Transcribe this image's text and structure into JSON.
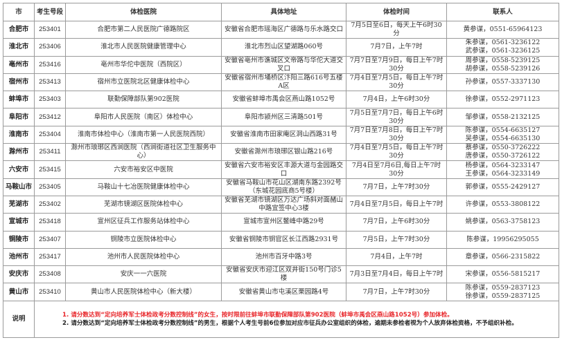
{
  "headers": [
    "市",
    "考生号段",
    "体检医院",
    "具体地址",
    "体检时间",
    "联系人"
  ],
  "rows": [
    {
      "city": "合肥市",
      "code": "253401",
      "hospital": "合肥市第二人民医院广德路院区",
      "address": "安徽省合肥市瑶海区广德路与乐水路交口",
      "time": "7月5日至6日，每天上午6时30分",
      "contacts": [
        "黄参谋，0551-65964123"
      ]
    },
    {
      "city": "淮北市",
      "code": "253406",
      "hospital": "淮北市人民医院健康管理中心",
      "address": "淮北市烈山区望湖路060号",
      "time": "7月7日，上午7时",
      "contacts": [
        "朱参谋，0561-3236122",
        "武参谋，0561-3236125"
      ]
    },
    {
      "city": "亳州市",
      "code": "253416",
      "hospital": "亳州市华佗中医院（西院区）",
      "address": "安徽省亳州市谯城区文帝路与华佗大道交叉口",
      "time": "7月7日至7月9日，每日上午7时30分",
      "contacts": [
        "周参谋，0558-5239125",
        "胡参谋，0558-5239126"
      ]
    },
    {
      "city": "宿州市",
      "code": "253413",
      "hospital": "宿州市立医院北区健康体检中心",
      "address": "安徽省宿州市埇桥区汴阳三路616号五楼A区",
      "time": "7月4日至7月5日，每日上午7时30分",
      "contacts": [
        "孙参谋，0557-3337130"
      ]
    },
    {
      "city": "蚌埠市",
      "code": "253403",
      "hospital": "联勤保障部队第902医院",
      "address": "安徽省蚌埠市禹会区燕山路1052号",
      "time": "7月4日，上午6时30分",
      "contacts": [
        "徐参谋，0552-2971123"
      ]
    },
    {
      "city": "阜阳市",
      "code": "253412",
      "hospital": "阜阳市人民医院（南区）体检中心",
      "address": "阜阳市颍州区三清路501号",
      "time": "7月5日至7月7日，每日上午6时30分",
      "contacts": [
        "邹参谋，0558-2132125"
      ]
    },
    {
      "city": "淮南市",
      "code": "253404",
      "hospital": "淮南市体检中心（淮南市第一人民医院西院）",
      "address": "安徽省淮南市田家庵区洞山西路31号",
      "time": "7月7日至7月8日，每日上午7时30分",
      "contacts": [
        "陈参谋，0554-6635127",
        "吴参谋，0554-6635130"
      ]
    },
    {
      "city": "滁州市",
      "code": "253411",
      "hospital": "滁州市琅琊区西涧医院（西涧街道社区卫生服务中心）",
      "address": "安徽省滁州市琅琊区银山路216号",
      "time": "7月4日至7月5日，每日上午7时30分",
      "contacts": [
        "蔡参谋，0550-3726222",
        "唐参谋，0550-3726122"
      ]
    },
    {
      "city": "六安市",
      "code": "253415",
      "hospital": "六安市裕安区中医院",
      "address": "安徽省六安市裕安区丰源大道与金园路交口",
      "time": "7月4日至7月6日,每日上午7时30分",
      "contacts": [
        "杨参谋，0564-3233147",
        "王参谋，0564-3233149"
      ]
    },
    {
      "city": "马鞍山市",
      "code": "253405",
      "hospital": "马鞍山十七冶医院健康体检中心",
      "address": "安徽省马鞍山市花山区湖南东路2392号（东城花园底商5号楼）",
      "time": "7月7日，上午7时30分",
      "contacts": [
        "郭参谋，0555-2429127"
      ]
    },
    {
      "city": "芜湖市",
      "code": "253402",
      "hospital": "芜湖市镜湖区医院体检中心",
      "address": "安徽省芜湖市镜湖区万达广场斜对面赭山中路宜签中心3楼",
      "time": "7月4日至7月5日，每日上午7时",
      "contacts": [
        "许参谋，0553-3808122"
      ]
    },
    {
      "city": "宣城市",
      "code": "253418",
      "hospital": "宣州区征兵工作服务站体检中心",
      "address": "宣城市宣州区鳌峰中路29号",
      "time": "7月7日，上午6时30分",
      "contacts": [
        "姚参谋，0563-3758123"
      ]
    },
    {
      "city": "铜陵市",
      "code": "253407",
      "hospital": "铜陵市立医院体检中心",
      "address": "安徽省铜陵市铜官区长江西路2931号",
      "time": "7月5日，上午7时30分",
      "contacts": [
        "陈参谋，19956295055"
      ]
    },
    {
      "city": "池州市",
      "code": "253417",
      "hospital": "池州市人民医院体检中心",
      "address": "池州市百牙中路3号",
      "time": "7月4日，上午7时",
      "contacts": [
        "章参谋，0566-2315822"
      ]
    },
    {
      "city": "安庆市",
      "code": "253408",
      "hospital": "安庆一一六医院",
      "address": "安徽省安庆市迎江区双井街150号门诊5楼",
      "time": "7月3日至7月4日，每日上午7时",
      "contacts": [
        "宋参谋，0556-5815217"
      ]
    },
    {
      "city": "黄山市",
      "code": "253410",
      "hospital": "黄山市人民医院体检中心（新大楼）",
      "address": "安徽省黄山市屯溪区栗园路4号",
      "time": "7月7日，上午7时30分",
      "contacts": [
        "陈参谋，0559-2837123",
        "徐参谋，0559-2837125"
      ]
    }
  ],
  "notes": {
    "label": "说明",
    "items": [
      {
        "text": "1. 请分数达到“定向培养军士体检政考分数控制线”的女生，按时限前往蚌埠市联勤保障部队第902医院（蚌埠市禹会区燕山路1052号）参加体检。",
        "color": "#e8262a"
      },
      {
        "text": "2. 请分数达到“定向培养军士体检政考分数控制线”的男生，根据个人考生号前6位参加对应市征兵办公室组织的体检，逾期未参检者视为个人放弃体检资格，不予组织补检。",
        "color": "#222222"
      }
    ]
  }
}
